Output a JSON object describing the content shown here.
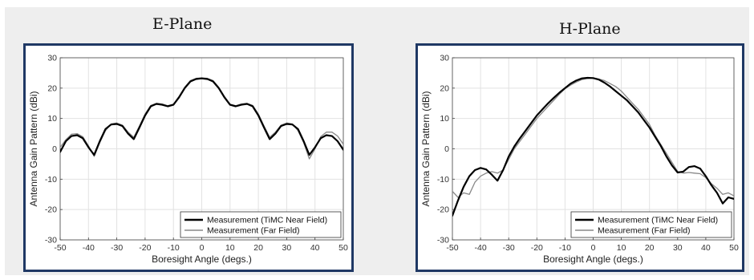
{
  "chart_data": [
    {
      "type": "line",
      "title": "E-Plane",
      "xlabel": "Boresight Angle (degs.)",
      "ylabel": "Antenna Gain Pattern (dBi)",
      "xlim": [
        -50,
        50
      ],
      "ylim": [
        -30,
        30
      ],
      "xticks": [
        -50,
        -40,
        -30,
        -20,
        -10,
        0,
        10,
        20,
        30,
        40,
        50
      ],
      "yticks": [
        -30,
        -20,
        -10,
        0,
        10,
        20,
        30
      ],
      "grid": true,
      "legend_position": "bottom-right",
      "series": [
        {
          "name": "Measurement (TiMC Near Field)",
          "color": "#000000",
          "x": [
            -50,
            -48,
            -46,
            -44,
            -42,
            -40,
            -38,
            -36,
            -34,
            -32,
            -30,
            -28,
            -26,
            -24,
            -22,
            -20,
            -18,
            -16,
            -14,
            -12,
            -10,
            -8,
            -6,
            -4,
            -2,
            0,
            2,
            4,
            6,
            8,
            10,
            12,
            14,
            16,
            18,
            20,
            22,
            24,
            26,
            28,
            30,
            32,
            34,
            36,
            38,
            40,
            42,
            44,
            46,
            48,
            50
          ],
          "y": [
            -1,
            2.5,
            4.2,
            4.5,
            3.5,
            0.5,
            -2,
            2.5,
            6.5,
            8,
            8.2,
            7.5,
            5,
            3.2,
            7,
            11,
            14,
            14.8,
            14.5,
            14,
            14.5,
            17,
            20,
            22.2,
            23,
            23.2,
            23,
            22.2,
            20,
            17,
            14.5,
            14,
            14.5,
            14.8,
            14,
            11,
            7,
            3.2,
            5,
            7.5,
            8.2,
            8,
            6.5,
            2.5,
            -2,
            0.5,
            3.5,
            4.5,
            4.2,
            2.5,
            -0.3
          ]
        },
        {
          "name": "Measurement (Far Field)",
          "color": "#888888",
          "x": [
            -50,
            -48,
            -46,
            -44,
            -42,
            -40,
            -38,
            -36,
            -34,
            -32,
            -30,
            -28,
            -26,
            -24,
            -22,
            -20,
            -18,
            -16,
            -14,
            -12,
            -10,
            -8,
            -6,
            -4,
            -2,
            0,
            2,
            4,
            6,
            8,
            10,
            12,
            14,
            16,
            18,
            20,
            22,
            24,
            26,
            28,
            30,
            32,
            34,
            36,
            38,
            40,
            42,
            44,
            46,
            48,
            50
          ],
          "y": [
            0.5,
            3,
            4.8,
            5,
            4,
            1,
            -2.5,
            2,
            6,
            8.2,
            8.5,
            7.8,
            5.5,
            3.8,
            7.5,
            11.5,
            14.3,
            15,
            14.8,
            14.2,
            14.7,
            17.3,
            20.3,
            22.5,
            23.2,
            23.4,
            23.2,
            22.5,
            20.3,
            17.3,
            14.7,
            14.2,
            14.8,
            15,
            14.3,
            11.5,
            7.5,
            3.8,
            5.5,
            7.8,
            8.5,
            8.2,
            6,
            2,
            -3.3,
            0,
            4,
            5.5,
            5.5,
            4.2,
            1.5
          ]
        }
      ]
    },
    {
      "type": "line",
      "title": "H-Plane",
      "xlabel": "Boresight Angle (degs.)",
      "ylabel": "Antenna Gain Pattern (dBi)",
      "xlim": [
        -50,
        50
      ],
      "ylim": [
        -30,
        30
      ],
      "xticks": [
        -50,
        -40,
        -30,
        -20,
        -10,
        0,
        10,
        20,
        30,
        40,
        50
      ],
      "yticks": [
        -30,
        -20,
        -10,
        0,
        10,
        20,
        30
      ],
      "grid": true,
      "legend_position": "bottom-right",
      "series": [
        {
          "name": "Measurement (TiMC Near Field)",
          "color": "#000000",
          "x": [
            -50,
            -48,
            -46,
            -44,
            -42,
            -40,
            -38,
            -36,
            -34,
            -32,
            -30,
            -28,
            -26,
            -24,
            -22,
            -20,
            -18,
            -16,
            -14,
            -12,
            -10,
            -8,
            -6,
            -4,
            -2,
            0,
            2,
            4,
            6,
            8,
            10,
            12,
            14,
            16,
            18,
            20,
            22,
            24,
            26,
            28,
            30,
            32,
            34,
            36,
            38,
            40,
            42,
            44,
            46,
            48,
            50
          ],
          "y": [
            -22,
            -17,
            -12.5,
            -9,
            -7,
            -6.3,
            -6.8,
            -8.5,
            -10.5,
            -7,
            -2.5,
            0.8,
            3.5,
            6,
            8.5,
            11,
            13,
            15,
            16.8,
            18.5,
            20,
            21.5,
            22.5,
            23.2,
            23.4,
            23.3,
            22.8,
            21.8,
            20.5,
            19,
            17.5,
            16,
            14,
            12,
            9.5,
            7,
            4,
            1,
            -2.5,
            -5.5,
            -7.8,
            -7.5,
            -6,
            -5.7,
            -6.5,
            -9,
            -12,
            -14.5,
            -18,
            -16,
            -16.5
          ]
        },
        {
          "name": "Measurement (Far Field)",
          "color": "#888888",
          "x": [
            -50,
            -48,
            -46,
            -44,
            -42,
            -40,
            -38,
            -36,
            -34,
            -32,
            -30,
            -28,
            -26,
            -24,
            -22,
            -20,
            -18,
            -16,
            -14,
            -12,
            -10,
            -8,
            -6,
            -4,
            -2,
            0,
            2,
            4,
            6,
            8,
            10,
            12,
            14,
            16,
            18,
            20,
            22,
            24,
            26,
            28,
            30,
            32,
            34,
            36,
            38,
            40,
            42,
            44,
            46,
            48,
            50
          ],
          "y": [
            -14,
            -16,
            -14.5,
            -15,
            -11,
            -9,
            -8,
            -7.5,
            -8,
            -7,
            -3.5,
            0,
            2.5,
            5,
            7.5,
            10,
            12,
            14,
            16,
            18,
            19.8,
            21,
            22,
            22.8,
            23.2,
            23.3,
            23,
            22.5,
            21.5,
            20.5,
            19,
            17,
            15,
            13,
            10.5,
            8,
            4.5,
            1.5,
            -1.5,
            -4.5,
            -7.5,
            -8,
            -7.8,
            -8,
            -8.2,
            -9.5,
            -11.5,
            -13,
            -15,
            -14.5,
            -15.5
          ]
        }
      ]
    }
  ]
}
